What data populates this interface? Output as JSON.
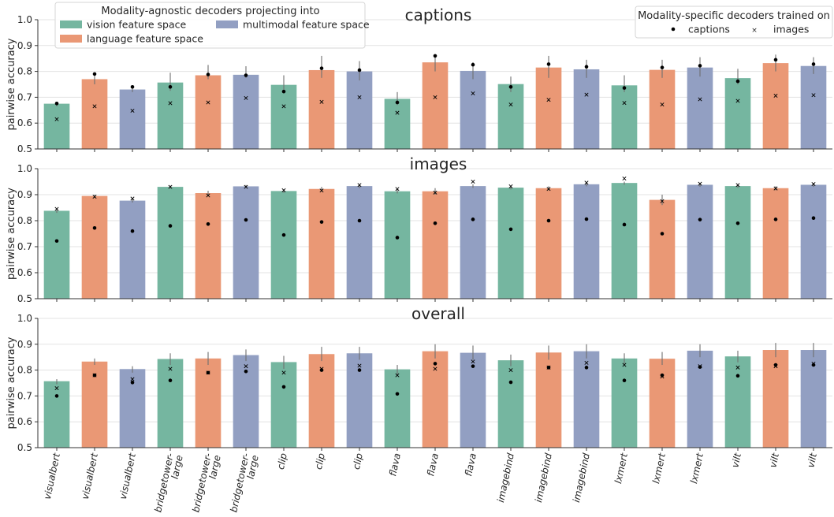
{
  "colors": {
    "vision": "#75b6a0",
    "language": "#ea9875",
    "multimodal": "#929fc2",
    "grid": "#e3e3e3",
    "axis": "#333333",
    "errorbar": "#6f6f6f"
  },
  "legend_agnostic": {
    "title": "Modality-agnostic decoders projecting into",
    "items": [
      "vision feature space",
      "language feature space",
      "multimodal feature space"
    ]
  },
  "legend_specific": {
    "title": "Modality-specific decoders trained on",
    "items": [
      "captions",
      "images"
    ]
  },
  "chart_data": [
    {
      "type": "bar",
      "title": "captions",
      "ylabel": "pairwise accuracy",
      "ylim": [
        0.5,
        1.0
      ],
      "yticks": [
        "0.5",
        "0.6",
        "0.7",
        "0.8",
        "0.9",
        "1.0"
      ],
      "grid": true,
      "categories": [
        "visualbert",
        "visualbert",
        "visualbert",
        "bridgetower-large",
        "bridgetower-large",
        "bridgetower-large",
        "clip",
        "clip",
        "clip",
        "flava",
        "flava",
        "flava",
        "imagebind",
        "imagebind",
        "imagebind",
        "lxmert",
        "lxmert",
        "lxmert",
        "vilt",
        "vilt",
        "vilt"
      ],
      "feature_space": [
        "vision",
        "language",
        "multimodal",
        "vision",
        "language",
        "multimodal",
        "vision",
        "language",
        "multimodal",
        "vision",
        "language",
        "multimodal",
        "vision",
        "language",
        "multimodal",
        "vision",
        "language",
        "multimodal",
        "vision",
        "language",
        "multimodal"
      ],
      "bar_values": [
        0.675,
        0.77,
        0.73,
        0.757,
        0.785,
        0.787,
        0.748,
        0.805,
        0.8,
        0.694,
        0.835,
        0.802,
        0.751,
        0.815,
        0.808,
        0.746,
        0.806,
        0.815,
        0.774,
        0.832,
        0.821
      ],
      "error_high": [
        0.68,
        0.79,
        0.74,
        0.795,
        0.825,
        0.82,
        0.785,
        0.86,
        0.84,
        0.72,
        0.865,
        0.835,
        0.78,
        0.86,
        0.845,
        0.785,
        0.845,
        0.855,
        0.81,
        0.865,
        0.855
      ],
      "error_low": [
        0.665,
        0.75,
        0.72,
        0.725,
        0.77,
        0.775,
        0.72,
        0.775,
        0.765,
        0.67,
        0.8,
        0.77,
        0.72,
        0.775,
        0.775,
        0.72,
        0.775,
        0.78,
        0.75,
        0.8,
        0.79
      ],
      "captions_decoder": [
        0.676,
        0.79,
        0.74,
        0.74,
        0.788,
        0.785,
        0.722,
        0.812,
        0.805,
        0.68,
        0.86,
        0.826,
        0.74,
        0.828,
        0.818,
        0.736,
        0.815,
        0.822,
        0.762,
        0.845,
        0.828
      ],
      "images_decoder": [
        0.615,
        0.665,
        0.648,
        0.677,
        0.68,
        0.697,
        0.665,
        0.682,
        0.7,
        0.64,
        0.7,
        0.715,
        0.672,
        0.69,
        0.71,
        0.678,
        0.672,
        0.692,
        0.686,
        0.706,
        0.708
      ]
    },
    {
      "type": "bar",
      "title": "images",
      "ylabel": "pairwise accuracy",
      "ylim": [
        0.5,
        1.0
      ],
      "yticks": [
        "0.5",
        "0.6",
        "0.7",
        "0.8",
        "0.9",
        "1.0"
      ],
      "grid": true,
      "categories": [
        "visualbert",
        "visualbert",
        "visualbert",
        "bridgetower-large",
        "bridgetower-large",
        "bridgetower-large",
        "clip",
        "clip",
        "clip",
        "flava",
        "flava",
        "flava",
        "imagebind",
        "imagebind",
        "imagebind",
        "lxmert",
        "lxmert",
        "lxmert",
        "vilt",
        "vilt",
        "vilt"
      ],
      "feature_space": [
        "vision",
        "language",
        "multimodal",
        "vision",
        "language",
        "multimodal",
        "vision",
        "language",
        "multimodal",
        "vision",
        "language",
        "multimodal",
        "vision",
        "language",
        "multimodal",
        "vision",
        "language",
        "multimodal",
        "vision",
        "language",
        "multimodal"
      ],
      "bar_values": [
        0.838,
        0.895,
        0.877,
        0.93,
        0.906,
        0.932,
        0.914,
        0.922,
        0.933,
        0.913,
        0.913,
        0.933,
        0.927,
        0.925,
        0.94,
        0.945,
        0.88,
        0.938,
        0.933,
        0.925,
        0.938
      ],
      "error_high": [
        0.845,
        0.9,
        0.885,
        0.935,
        0.915,
        0.937,
        0.92,
        0.93,
        0.94,
        0.92,
        0.925,
        0.94,
        0.933,
        0.932,
        0.947,
        0.95,
        0.9,
        0.945,
        0.94,
        0.932,
        0.945
      ],
      "error_low": [
        0.83,
        0.888,
        0.87,
        0.924,
        0.895,
        0.926,
        0.907,
        0.913,
        0.925,
        0.905,
        0.9,
        0.926,
        0.92,
        0.917,
        0.932,
        0.938,
        0.86,
        0.93,
        0.926,
        0.917,
        0.93
      ],
      "captions_decoder": [
        0.722,
        0.772,
        0.76,
        0.78,
        0.787,
        0.803,
        0.745,
        0.795,
        0.8,
        0.735,
        0.79,
        0.805,
        0.767,
        0.8,
        0.806,
        0.785,
        0.75,
        0.804,
        0.79,
        0.805,
        0.81
      ],
      "images_decoder": [
        0.845,
        0.892,
        0.885,
        0.93,
        0.897,
        0.93,
        0.917,
        0.916,
        0.937,
        0.922,
        0.908,
        0.95,
        0.932,
        0.922,
        0.946,
        0.962,
        0.875,
        0.942,
        0.937,
        0.924,
        0.941
      ]
    },
    {
      "type": "bar",
      "title": "overall",
      "ylabel": "pairwise accuracy",
      "ylim": [
        0.5,
        1.0
      ],
      "yticks": [
        "0.5",
        "0.6",
        "0.7",
        "0.8",
        "0.9",
        "1.0"
      ],
      "grid": true,
      "categories": [
        "visualbert",
        "visualbert",
        "visualbert",
        "bridgetower-large",
        "bridgetower-large",
        "bridgetower-large",
        "clip",
        "clip",
        "clip",
        "flava",
        "flava",
        "flava",
        "imagebind",
        "imagebind",
        "imagebind",
        "lxmert",
        "lxmert",
        "lxmert",
        "vilt",
        "vilt",
        "vilt"
      ],
      "feature_space": [
        "vision",
        "language",
        "multimodal",
        "vision",
        "language",
        "multimodal",
        "vision",
        "language",
        "multimodal",
        "vision",
        "language",
        "multimodal",
        "vision",
        "language",
        "multimodal",
        "vision",
        "language",
        "multimodal",
        "vision",
        "language",
        "multimodal"
      ],
      "bar_values": [
        0.757,
        0.833,
        0.804,
        0.843,
        0.845,
        0.858,
        0.831,
        0.862,
        0.865,
        0.803,
        0.873,
        0.867,
        0.838,
        0.868,
        0.873,
        0.845,
        0.844,
        0.875,
        0.853,
        0.878,
        0.878
      ],
      "error_high": [
        0.765,
        0.845,
        0.815,
        0.865,
        0.87,
        0.88,
        0.855,
        0.89,
        0.89,
        0.82,
        0.9,
        0.895,
        0.86,
        0.895,
        0.9,
        0.865,
        0.87,
        0.9,
        0.875,
        0.905,
        0.905
      ],
      "error_low": [
        0.745,
        0.82,
        0.79,
        0.82,
        0.82,
        0.835,
        0.805,
        0.835,
        0.84,
        0.785,
        0.845,
        0.84,
        0.815,
        0.84,
        0.845,
        0.825,
        0.82,
        0.85,
        0.83,
        0.85,
        0.85
      ],
      "captions_decoder": [
        0.7,
        0.78,
        0.752,
        0.76,
        0.79,
        0.795,
        0.735,
        0.8,
        0.8,
        0.708,
        0.825,
        0.815,
        0.753,
        0.81,
        0.81,
        0.76,
        0.78,
        0.812,
        0.778,
        0.82,
        0.82
      ],
      "images_decoder": [
        0.73,
        0.78,
        0.765,
        0.805,
        0.79,
        0.815,
        0.79,
        0.805,
        0.817,
        0.78,
        0.805,
        0.833,
        0.8,
        0.81,
        0.828,
        0.82,
        0.775,
        0.815,
        0.81,
        0.815,
        0.825
      ]
    }
  ]
}
